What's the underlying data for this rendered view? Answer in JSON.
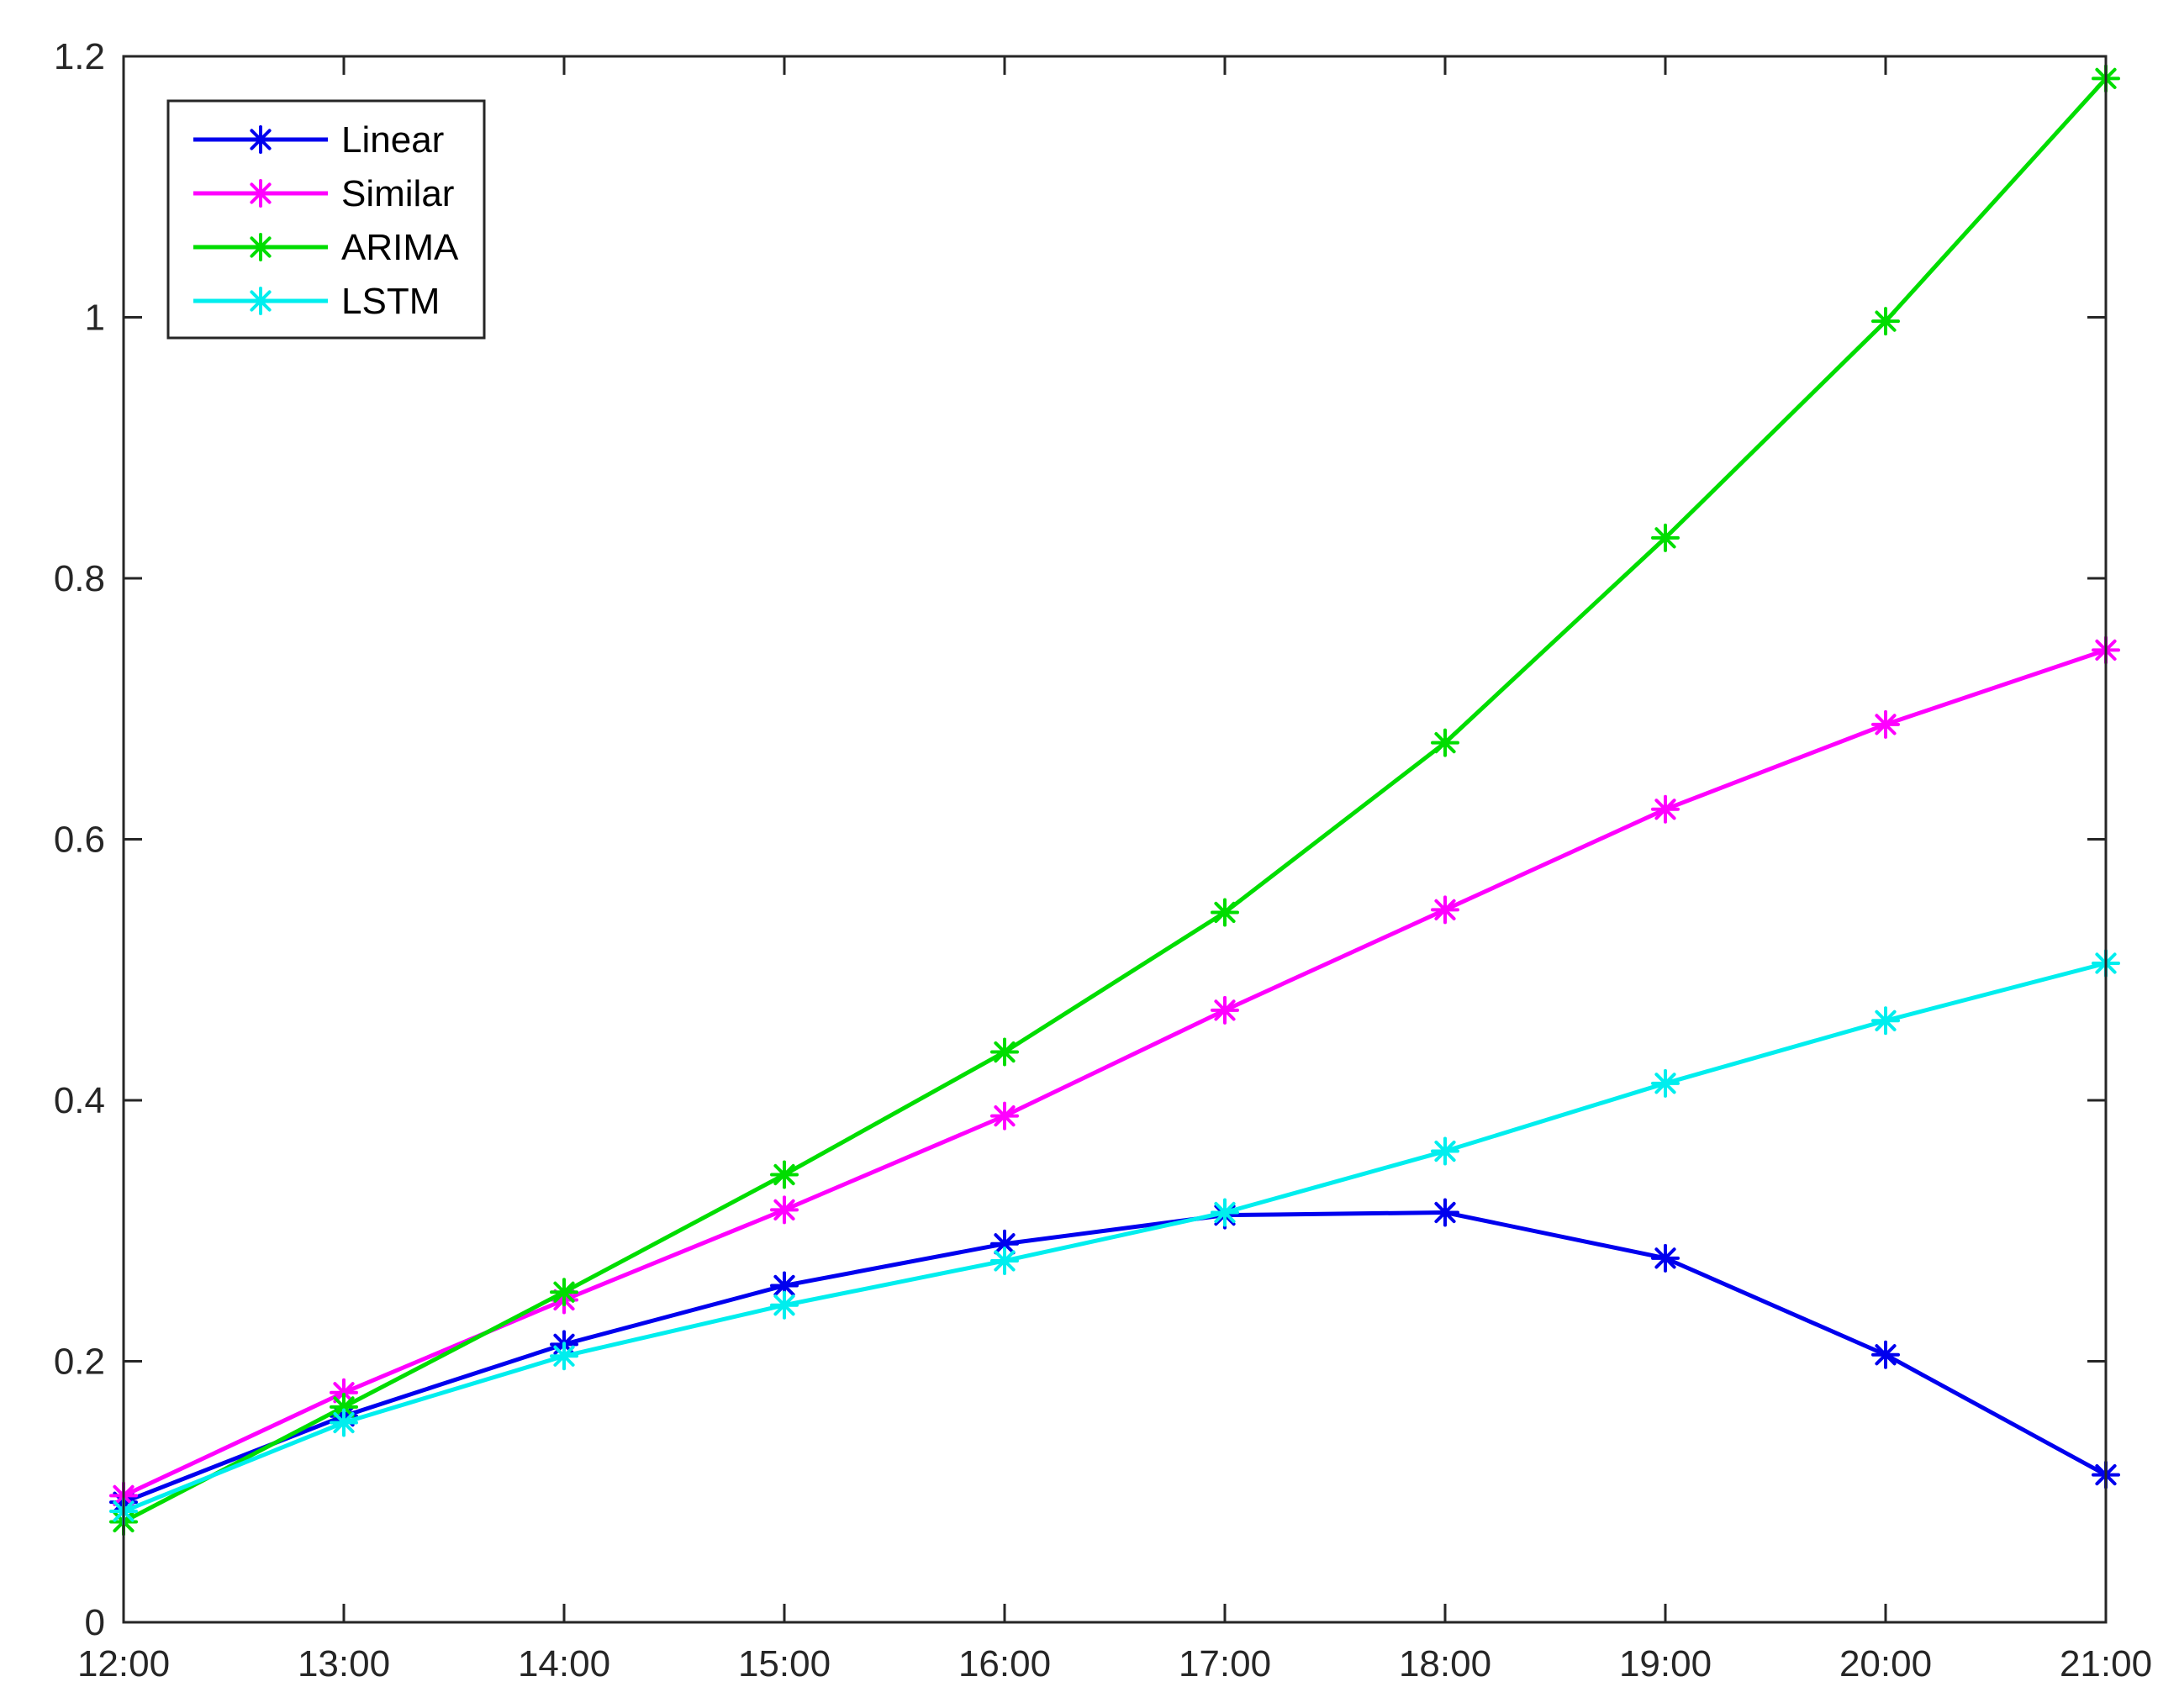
{
  "chart_data": {
    "type": "line",
    "title": "",
    "xlabel": "",
    "ylabel": "",
    "categories": [
      "12:00",
      "13:00",
      "14:00",
      "15:00",
      "16:00",
      "17:00",
      "18:00",
      "19:00",
      "20:00",
      "21:00"
    ],
    "ylim": [
      0,
      1.2
    ],
    "yticks": [
      0,
      0.2,
      0.4,
      0.6,
      0.8,
      1,
      1.2
    ],
    "ytick_labels": [
      "0",
      "0.2",
      "0.4",
      "0.6",
      "0.8",
      "1",
      "1.2"
    ],
    "grid": false,
    "legend_position": "top-left",
    "marker": "asterisk",
    "series": [
      {
        "name": "Linear",
        "color": "#0000ee",
        "values": [
          0.092,
          0.158,
          0.213,
          0.258,
          0.29,
          0.312,
          0.314,
          0.279,
          0.205,
          0.113
        ]
      },
      {
        "name": "Similar",
        "color": "#ff00ff",
        "values": [
          0.097,
          0.176,
          0.247,
          0.316,
          0.388,
          0.469,
          0.546,
          0.623,
          0.688,
          0.745
        ]
      },
      {
        "name": "ARIMA",
        "color": "#00dd00",
        "values": [
          0.077,
          0.165,
          0.253,
          0.343,
          0.437,
          0.544,
          0.674,
          0.831,
          0.997,
          1.183
        ]
      },
      {
        "name": "LSTM",
        "color": "#00eeee",
        "values": [
          0.085,
          0.153,
          0.204,
          0.243,
          0.277,
          0.314,
          0.361,
          0.413,
          0.461,
          0.505
        ]
      }
    ]
  }
}
